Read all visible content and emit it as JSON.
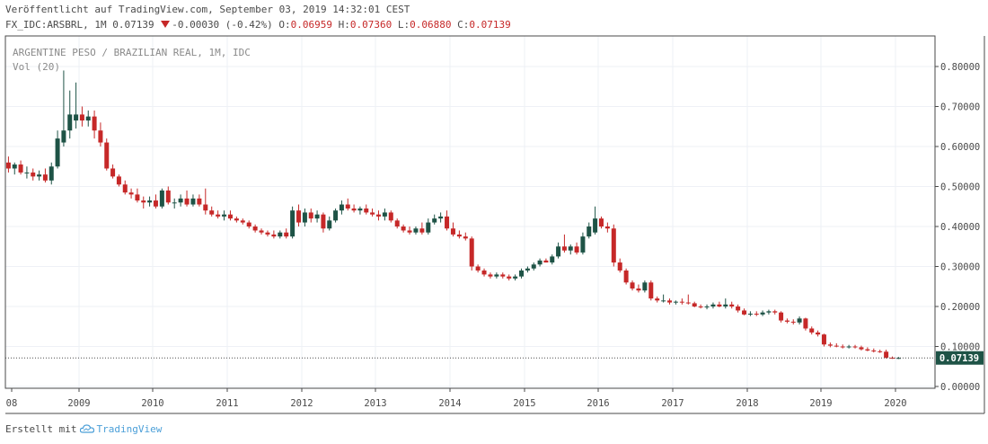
{
  "header": {
    "published": "Veröffentlicht auf TradingView.com, September 03, 2019 14:32:01 CEST",
    "symbol_line": "FX_IDC:ARSBRL, 1M 0.07139",
    "change": "-0.00030 (-0.42%)",
    "o_label": "O:",
    "o_value": "0.06959",
    "h_label": "H:",
    "h_value": "0.07360",
    "l_label": "L:",
    "l_value": "0.06880",
    "c_label": "C:",
    "c_value": "0.07139"
  },
  "footer": {
    "created_with": "Erstellt mit",
    "brand": "TradingView"
  },
  "colors": {
    "up": "#1e5346",
    "down": "#c62828",
    "grid": "#eef1f6",
    "axis": "#4a4a4a",
    "price_tag": "#1e5346"
  },
  "chart_data": {
    "type": "candlestick",
    "title": "ARGENTINE PESO / BRAZILIAN REAL, 1M, IDC",
    "subtitle": "Vol (20)",
    "x_ticks": [
      "08",
      "2009",
      "2010",
      "2011",
      "2012",
      "2013",
      "2014",
      "2015",
      "2016",
      "2017",
      "2018",
      "2019",
      "2020"
    ],
    "y_ticks": [
      "0.80000",
      "0.70000",
      "0.60000",
      "0.50000",
      "0.40000",
      "0.30000",
      "0.20000",
      "0.10000",
      "0.00000"
    ],
    "ylim": [
      0,
      0.86
    ],
    "last_price_label": "0.07139",
    "last_price": 0.07139,
    "candles": [
      {
        "date": "2008-01",
        "o": 0.56,
        "h": 0.575,
        "l": 0.535,
        "c": 0.545
      },
      {
        "date": "2008-02",
        "o": 0.545,
        "h": 0.56,
        "l": 0.53,
        "c": 0.555
      },
      {
        "date": "2008-03",
        "o": 0.555,
        "h": 0.565,
        "l": 0.53,
        "c": 0.535
      },
      {
        "date": "2008-04",
        "o": 0.535,
        "h": 0.55,
        "l": 0.52,
        "c": 0.535
      },
      {
        "date": "2008-05",
        "o": 0.535,
        "h": 0.545,
        "l": 0.515,
        "c": 0.525
      },
      {
        "date": "2008-06",
        "o": 0.525,
        "h": 0.54,
        "l": 0.515,
        "c": 0.53
      },
      {
        "date": "2008-07",
        "o": 0.53,
        "h": 0.545,
        "l": 0.51,
        "c": 0.515
      },
      {
        "date": "2008-08",
        "o": 0.515,
        "h": 0.56,
        "l": 0.505,
        "c": 0.55
      },
      {
        "date": "2008-09",
        "o": 0.55,
        "h": 0.64,
        "l": 0.545,
        "c": 0.62
      },
      {
        "date": "2008-10",
        "o": 0.61,
        "h": 0.79,
        "l": 0.6,
        "c": 0.64
      },
      {
        "date": "2008-11",
        "o": 0.64,
        "h": 0.74,
        "l": 0.62,
        "c": 0.68
      },
      {
        "date": "2008-12",
        "o": 0.665,
        "h": 0.76,
        "l": 0.645,
        "c": 0.68
      },
      {
        "date": "2009-01",
        "o": 0.68,
        "h": 0.7,
        "l": 0.65,
        "c": 0.665
      },
      {
        "date": "2009-02",
        "o": 0.665,
        "h": 0.69,
        "l": 0.65,
        "c": 0.675
      },
      {
        "date": "2009-03",
        "o": 0.675,
        "h": 0.69,
        "l": 0.62,
        "c": 0.64
      },
      {
        "date": "2009-04",
        "o": 0.64,
        "h": 0.66,
        "l": 0.6,
        "c": 0.61
      },
      {
        "date": "2009-05",
        "o": 0.61,
        "h": 0.62,
        "l": 0.54,
        "c": 0.545
      },
      {
        "date": "2009-06",
        "o": 0.545,
        "h": 0.555,
        "l": 0.52,
        "c": 0.525
      },
      {
        "date": "2009-07",
        "o": 0.525,
        "h": 0.53,
        "l": 0.5,
        "c": 0.505
      },
      {
        "date": "2009-08",
        "o": 0.505,
        "h": 0.515,
        "l": 0.48,
        "c": 0.485
      },
      {
        "date": "2009-09",
        "o": 0.485,
        "h": 0.495,
        "l": 0.47,
        "c": 0.48
      },
      {
        "date": "2009-10",
        "o": 0.48,
        "h": 0.495,
        "l": 0.46,
        "c": 0.465
      },
      {
        "date": "2009-11",
        "o": 0.465,
        "h": 0.475,
        "l": 0.445,
        "c": 0.46
      },
      {
        "date": "2009-12",
        "o": 0.46,
        "h": 0.475,
        "l": 0.45,
        "c": 0.465
      },
      {
        "date": "2010-01",
        "o": 0.465,
        "h": 0.48,
        "l": 0.445,
        "c": 0.45
      },
      {
        "date": "2010-02",
        "o": 0.45,
        "h": 0.495,
        "l": 0.445,
        "c": 0.49
      },
      {
        "date": "2010-03",
        "o": 0.49,
        "h": 0.5,
        "l": 0.455,
        "c": 0.46
      },
      {
        "date": "2010-04",
        "o": 0.46,
        "h": 0.47,
        "l": 0.445,
        "c": 0.46
      },
      {
        "date": "2010-05",
        "o": 0.46,
        "h": 0.48,
        "l": 0.45,
        "c": 0.47
      },
      {
        "date": "2010-06",
        "o": 0.47,
        "h": 0.49,
        "l": 0.45,
        "c": 0.455
      },
      {
        "date": "2010-07",
        "o": 0.455,
        "h": 0.48,
        "l": 0.45,
        "c": 0.47
      },
      {
        "date": "2010-08",
        "o": 0.47,
        "h": 0.48,
        "l": 0.45,
        "c": 0.455
      },
      {
        "date": "2010-09",
        "o": 0.455,
        "h": 0.495,
        "l": 0.43,
        "c": 0.44
      },
      {
        "date": "2010-10",
        "o": 0.44,
        "h": 0.45,
        "l": 0.425,
        "c": 0.43
      },
      {
        "date": "2010-11",
        "o": 0.43,
        "h": 0.44,
        "l": 0.42,
        "c": 0.425
      },
      {
        "date": "2010-12",
        "o": 0.425,
        "h": 0.44,
        "l": 0.415,
        "c": 0.43
      },
      {
        "date": "2011-01",
        "o": 0.43,
        "h": 0.44,
        "l": 0.415,
        "c": 0.42
      },
      {
        "date": "2011-02",
        "o": 0.42,
        "h": 0.425,
        "l": 0.41,
        "c": 0.415
      },
      {
        "date": "2011-03",
        "o": 0.415,
        "h": 0.42,
        "l": 0.405,
        "c": 0.41
      },
      {
        "date": "2011-04",
        "o": 0.41,
        "h": 0.415,
        "l": 0.395,
        "c": 0.4
      },
      {
        "date": "2011-05",
        "o": 0.4,
        "h": 0.405,
        "l": 0.385,
        "c": 0.39
      },
      {
        "date": "2011-06",
        "o": 0.39,
        "h": 0.395,
        "l": 0.38,
        "c": 0.385
      },
      {
        "date": "2011-07",
        "o": 0.385,
        "h": 0.39,
        "l": 0.375,
        "c": 0.38
      },
      {
        "date": "2011-08",
        "o": 0.38,
        "h": 0.39,
        "l": 0.37,
        "c": 0.375
      },
      {
        "date": "2011-09",
        "o": 0.375,
        "h": 0.39,
        "l": 0.37,
        "c": 0.385
      },
      {
        "date": "2011-10",
        "o": 0.385,
        "h": 0.395,
        "l": 0.37,
        "c": 0.375
      },
      {
        "date": "2011-11",
        "o": 0.375,
        "h": 0.45,
        "l": 0.37,
        "c": 0.44
      },
      {
        "date": "2011-12",
        "o": 0.44,
        "h": 0.455,
        "l": 0.4,
        "c": 0.41
      },
      {
        "date": "2012-01",
        "o": 0.41,
        "h": 0.445,
        "l": 0.4,
        "c": 0.435
      },
      {
        "date": "2012-02",
        "o": 0.435,
        "h": 0.445,
        "l": 0.41,
        "c": 0.42
      },
      {
        "date": "2012-03",
        "o": 0.42,
        "h": 0.44,
        "l": 0.41,
        "c": 0.43
      },
      {
        "date": "2012-04",
        "o": 0.43,
        "h": 0.435,
        "l": 0.385,
        "c": 0.395
      },
      {
        "date": "2012-05",
        "o": 0.395,
        "h": 0.425,
        "l": 0.39,
        "c": 0.415
      },
      {
        "date": "2012-06",
        "o": 0.415,
        "h": 0.445,
        "l": 0.41,
        "c": 0.44
      },
      {
        "date": "2012-07",
        "o": 0.44,
        "h": 0.465,
        "l": 0.43,
        "c": 0.455
      },
      {
        "date": "2012-08",
        "o": 0.455,
        "h": 0.47,
        "l": 0.44,
        "c": 0.445
      },
      {
        "date": "2012-09",
        "o": 0.445,
        "h": 0.455,
        "l": 0.435,
        "c": 0.44
      },
      {
        "date": "2012-10",
        "o": 0.44,
        "h": 0.45,
        "l": 0.43,
        "c": 0.445
      },
      {
        "date": "2012-11",
        "o": 0.445,
        "h": 0.455,
        "l": 0.43,
        "c": 0.435
      },
      {
        "date": "2012-12",
        "o": 0.435,
        "h": 0.445,
        "l": 0.425,
        "c": 0.43
      },
      {
        "date": "2013-01",
        "o": 0.43,
        "h": 0.44,
        "l": 0.415,
        "c": 0.425
      },
      {
        "date": "2013-02",
        "o": 0.425,
        "h": 0.445,
        "l": 0.415,
        "c": 0.435
      },
      {
        "date": "2013-03",
        "o": 0.435,
        "h": 0.44,
        "l": 0.41,
        "c": 0.415
      },
      {
        "date": "2013-04",
        "o": 0.415,
        "h": 0.42,
        "l": 0.395,
        "c": 0.4
      },
      {
        "date": "2013-05",
        "o": 0.4,
        "h": 0.405,
        "l": 0.385,
        "c": 0.39
      },
      {
        "date": "2013-06",
        "o": 0.39,
        "h": 0.4,
        "l": 0.38,
        "c": 0.385
      },
      {
        "date": "2013-07",
        "o": 0.385,
        "h": 0.4,
        "l": 0.38,
        "c": 0.395
      },
      {
        "date": "2013-08",
        "o": 0.395,
        "h": 0.41,
        "l": 0.38,
        "c": 0.385
      },
      {
        "date": "2013-09",
        "o": 0.385,
        "h": 0.42,
        "l": 0.38,
        "c": 0.41
      },
      {
        "date": "2013-10",
        "o": 0.41,
        "h": 0.43,
        "l": 0.405,
        "c": 0.42
      },
      {
        "date": "2013-11",
        "o": 0.42,
        "h": 0.435,
        "l": 0.41,
        "c": 0.425
      },
      {
        "date": "2013-12",
        "o": 0.425,
        "h": 0.44,
        "l": 0.39,
        "c": 0.395
      },
      {
        "date": "2014-01",
        "o": 0.395,
        "h": 0.41,
        "l": 0.375,
        "c": 0.38
      },
      {
        "date": "2014-02",
        "o": 0.38,
        "h": 0.39,
        "l": 0.37,
        "c": 0.375
      },
      {
        "date": "2014-03",
        "o": 0.375,
        "h": 0.385,
        "l": 0.365,
        "c": 0.37
      },
      {
        "date": "2014-04",
        "o": 0.37,
        "h": 0.375,
        "l": 0.29,
        "c": 0.3
      },
      {
        "date": "2014-05",
        "o": 0.3,
        "h": 0.305,
        "l": 0.285,
        "c": 0.29
      },
      {
        "date": "2014-06",
        "o": 0.29,
        "h": 0.295,
        "l": 0.275,
        "c": 0.28
      },
      {
        "date": "2014-07",
        "o": 0.28,
        "h": 0.285,
        "l": 0.27,
        "c": 0.275
      },
      {
        "date": "2014-08",
        "o": 0.275,
        "h": 0.285,
        "l": 0.27,
        "c": 0.28
      },
      {
        "date": "2014-09",
        "o": 0.28,
        "h": 0.285,
        "l": 0.27,
        "c": 0.275
      },
      {
        "date": "2014-10",
        "o": 0.275,
        "h": 0.28,
        "l": 0.265,
        "c": 0.27
      },
      {
        "date": "2014-11",
        "o": 0.27,
        "h": 0.28,
        "l": 0.265,
        "c": 0.275
      },
      {
        "date": "2014-12",
        "o": 0.275,
        "h": 0.295,
        "l": 0.27,
        "c": 0.29
      },
      {
        "date": "2015-01",
        "o": 0.29,
        "h": 0.3,
        "l": 0.285,
        "c": 0.295
      },
      {
        "date": "2015-02",
        "o": 0.295,
        "h": 0.31,
        "l": 0.29,
        "c": 0.305
      },
      {
        "date": "2015-03",
        "o": 0.305,
        "h": 0.32,
        "l": 0.3,
        "c": 0.315
      },
      {
        "date": "2015-04",
        "o": 0.315,
        "h": 0.32,
        "l": 0.31,
        "c": 0.31
      },
      {
        "date": "2015-05",
        "o": 0.31,
        "h": 0.33,
        "l": 0.305,
        "c": 0.325
      },
      {
        "date": "2015-06",
        "o": 0.325,
        "h": 0.36,
        "l": 0.32,
        "c": 0.35
      },
      {
        "date": "2015-07",
        "o": 0.35,
        "h": 0.38,
        "l": 0.335,
        "c": 0.34
      },
      {
        "date": "2015-08",
        "o": 0.34,
        "h": 0.355,
        "l": 0.33,
        "c": 0.35
      },
      {
        "date": "2015-09",
        "o": 0.35,
        "h": 0.36,
        "l": 0.33,
        "c": 0.335
      },
      {
        "date": "2015-10",
        "o": 0.335,
        "h": 0.385,
        "l": 0.33,
        "c": 0.375
      },
      {
        "date": "2015-11",
        "o": 0.375,
        "h": 0.41,
        "l": 0.37,
        "c": 0.4
      },
      {
        "date": "2015-12",
        "o": 0.385,
        "h": 0.45,
        "l": 0.38,
        "c": 0.42
      },
      {
        "date": "2016-01",
        "o": 0.42,
        "h": 0.425,
        "l": 0.395,
        "c": 0.4
      },
      {
        "date": "2016-02",
        "o": 0.4,
        "h": 0.41,
        "l": 0.385,
        "c": 0.395
      },
      {
        "date": "2016-03",
        "o": 0.395,
        "h": 0.405,
        "l": 0.3,
        "c": 0.31
      },
      {
        "date": "2016-04",
        "o": 0.31,
        "h": 0.32,
        "l": 0.285,
        "c": 0.29
      },
      {
        "date": "2016-05",
        "o": 0.29,
        "h": 0.295,
        "l": 0.255,
        "c": 0.26
      },
      {
        "date": "2016-06",
        "o": 0.26,
        "h": 0.265,
        "l": 0.24,
        "c": 0.245
      },
      {
        "date": "2016-07",
        "o": 0.245,
        "h": 0.255,
        "l": 0.235,
        "c": 0.24
      },
      {
        "date": "2016-08",
        "o": 0.24,
        "h": 0.265,
        "l": 0.235,
        "c": 0.26
      },
      {
        "date": "2016-09",
        "o": 0.26,
        "h": 0.265,
        "l": 0.215,
        "c": 0.22
      },
      {
        "date": "2016-10",
        "o": 0.22,
        "h": 0.225,
        "l": 0.21,
        "c": 0.215
      },
      {
        "date": "2016-11",
        "o": 0.215,
        "h": 0.23,
        "l": 0.21,
        "c": 0.215
      },
      {
        "date": "2016-12",
        "o": 0.215,
        "h": 0.22,
        "l": 0.205,
        "c": 0.21
      },
      {
        "date": "2017-01",
        "o": 0.21,
        "h": 0.215,
        "l": 0.205,
        "c": 0.212
      },
      {
        "date": "2017-02",
        "o": 0.212,
        "h": 0.22,
        "l": 0.205,
        "c": 0.21
      },
      {
        "date": "2017-03",
        "o": 0.21,
        "h": 0.23,
        "l": 0.205,
        "c": 0.208
      },
      {
        "date": "2017-04",
        "o": 0.208,
        "h": 0.212,
        "l": 0.198,
        "c": 0.2
      },
      {
        "date": "2017-05",
        "o": 0.2,
        "h": 0.205,
        "l": 0.195,
        "c": 0.198
      },
      {
        "date": "2017-06",
        "o": 0.198,
        "h": 0.205,
        "l": 0.193,
        "c": 0.2
      },
      {
        "date": "2017-07",
        "o": 0.2,
        "h": 0.21,
        "l": 0.195,
        "c": 0.205
      },
      {
        "date": "2017-08",
        "o": 0.205,
        "h": 0.212,
        "l": 0.198,
        "c": 0.2
      },
      {
        "date": "2017-09",
        "o": 0.2,
        "h": 0.22,
        "l": 0.195,
        "c": 0.205
      },
      {
        "date": "2017-10",
        "o": 0.205,
        "h": 0.212,
        "l": 0.195,
        "c": 0.2
      },
      {
        "date": "2017-11",
        "o": 0.2,
        "h": 0.205,
        "l": 0.185,
        "c": 0.19
      },
      {
        "date": "2017-12",
        "o": 0.19,
        "h": 0.195,
        "l": 0.178,
        "c": 0.18
      },
      {
        "date": "2018-01",
        "o": 0.18,
        "h": 0.188,
        "l": 0.176,
        "c": 0.182
      },
      {
        "date": "2018-02",
        "o": 0.182,
        "h": 0.188,
        "l": 0.176,
        "c": 0.18
      },
      {
        "date": "2018-03",
        "o": 0.18,
        "h": 0.19,
        "l": 0.176,
        "c": 0.185
      },
      {
        "date": "2018-04",
        "o": 0.185,
        "h": 0.192,
        "l": 0.18,
        "c": 0.188
      },
      {
        "date": "2018-05",
        "o": 0.188,
        "h": 0.192,
        "l": 0.18,
        "c": 0.185
      },
      {
        "date": "2018-06",
        "o": 0.185,
        "h": 0.188,
        "l": 0.16,
        "c": 0.165
      },
      {
        "date": "2018-07",
        "o": 0.165,
        "h": 0.17,
        "l": 0.158,
        "c": 0.162
      },
      {
        "date": "2018-08",
        "o": 0.162,
        "h": 0.168,
        "l": 0.155,
        "c": 0.16
      },
      {
        "date": "2018-09",
        "o": 0.16,
        "h": 0.175,
        "l": 0.155,
        "c": 0.17
      },
      {
        "date": "2018-10",
        "o": 0.17,
        "h": 0.172,
        "l": 0.14,
        "c": 0.145
      },
      {
        "date": "2018-11",
        "o": 0.145,
        "h": 0.15,
        "l": 0.13,
        "c": 0.135
      },
      {
        "date": "2018-12",
        "o": 0.135,
        "h": 0.14,
        "l": 0.125,
        "c": 0.13
      },
      {
        "date": "2019-01",
        "o": 0.13,
        "h": 0.132,
        "l": 0.1,
        "c": 0.105
      },
      {
        "date": "2019-02",
        "o": 0.105,
        "h": 0.11,
        "l": 0.098,
        "c": 0.102
      },
      {
        "date": "2019-03",
        "o": 0.102,
        "h": 0.108,
        "l": 0.098,
        "c": 0.1
      },
      {
        "date": "2019-04",
        "o": 0.1,
        "h": 0.105,
        "l": 0.095,
        "c": 0.098
      },
      {
        "date": "2019-05",
        "o": 0.098,
        "h": 0.104,
        "l": 0.095,
        "c": 0.1
      },
      {
        "date": "2019-06",
        "o": 0.1,
        "h": 0.104,
        "l": 0.095,
        "c": 0.098
      },
      {
        "date": "2019-07",
        "o": 0.098,
        "h": 0.102,
        "l": 0.09,
        "c": 0.093
      },
      {
        "date": "2019-08",
        "o": 0.093,
        "h": 0.098,
        "l": 0.088,
        "c": 0.09
      },
      {
        "date": "2019-09",
        "o": 0.09,
        "h": 0.095,
        "l": 0.085,
        "c": 0.088
      },
      {
        "date": "2019-10",
        "o": 0.088,
        "h": 0.092,
        "l": 0.084,
        "c": 0.087
      },
      {
        "date": "2019-11",
        "o": 0.087,
        "h": 0.092,
        "l": 0.07,
        "c": 0.072
      },
      {
        "date": "2019-12",
        "o": 0.072,
        "h": 0.075,
        "l": 0.069,
        "c": 0.07
      },
      {
        "date": "2020-01",
        "o": 0.06959,
        "h": 0.0736,
        "l": 0.0688,
        "c": 0.07139
      }
    ]
  }
}
